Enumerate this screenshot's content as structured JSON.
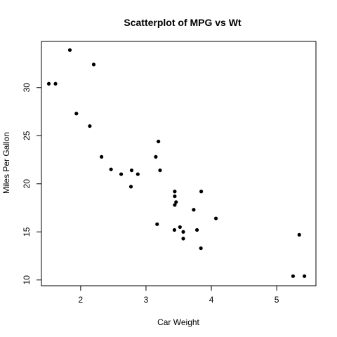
{
  "chart_data": {
    "type": "scatter",
    "title": "Scatterplot of MPG vs Wt",
    "xlabel": "Car Weight",
    "ylabel": "Miles Per Gallon",
    "xlim": [
      1.4,
      5.6
    ],
    "ylim": [
      9.4,
      34.8
    ],
    "x_ticks": [
      2,
      3,
      4,
      5
    ],
    "y_ticks": [
      10,
      15,
      20,
      25,
      30
    ],
    "grid": false,
    "legend": "none",
    "marker_color": "#000000",
    "series": [
      {
        "x": [
          2.62,
          2.875,
          2.32,
          3.215,
          3.44,
          3.46,
          3.57,
          3.19,
          3.15,
          3.44,
          3.44,
          4.07,
          3.73,
          3.78,
          5.25,
          5.424,
          5.345,
          2.2,
          1.615,
          1.835,
          2.465,
          3.52,
          3.435,
          3.84,
          3.845,
          1.935,
          2.14,
          1.513,
          3.17,
          2.77,
          3.57,
          2.78
        ],
        "y": [
          21.0,
          21.0,
          22.8,
          21.4,
          18.7,
          18.1,
          14.3,
          24.4,
          22.8,
          19.2,
          17.8,
          16.4,
          17.3,
          15.2,
          10.4,
          10.4,
          14.7,
          32.4,
          30.4,
          33.9,
          21.5,
          15.5,
          15.2,
          13.3,
          19.2,
          27.3,
          26.0,
          30.4,
          15.8,
          19.7,
          15.0,
          21.4
        ]
      }
    ]
  }
}
